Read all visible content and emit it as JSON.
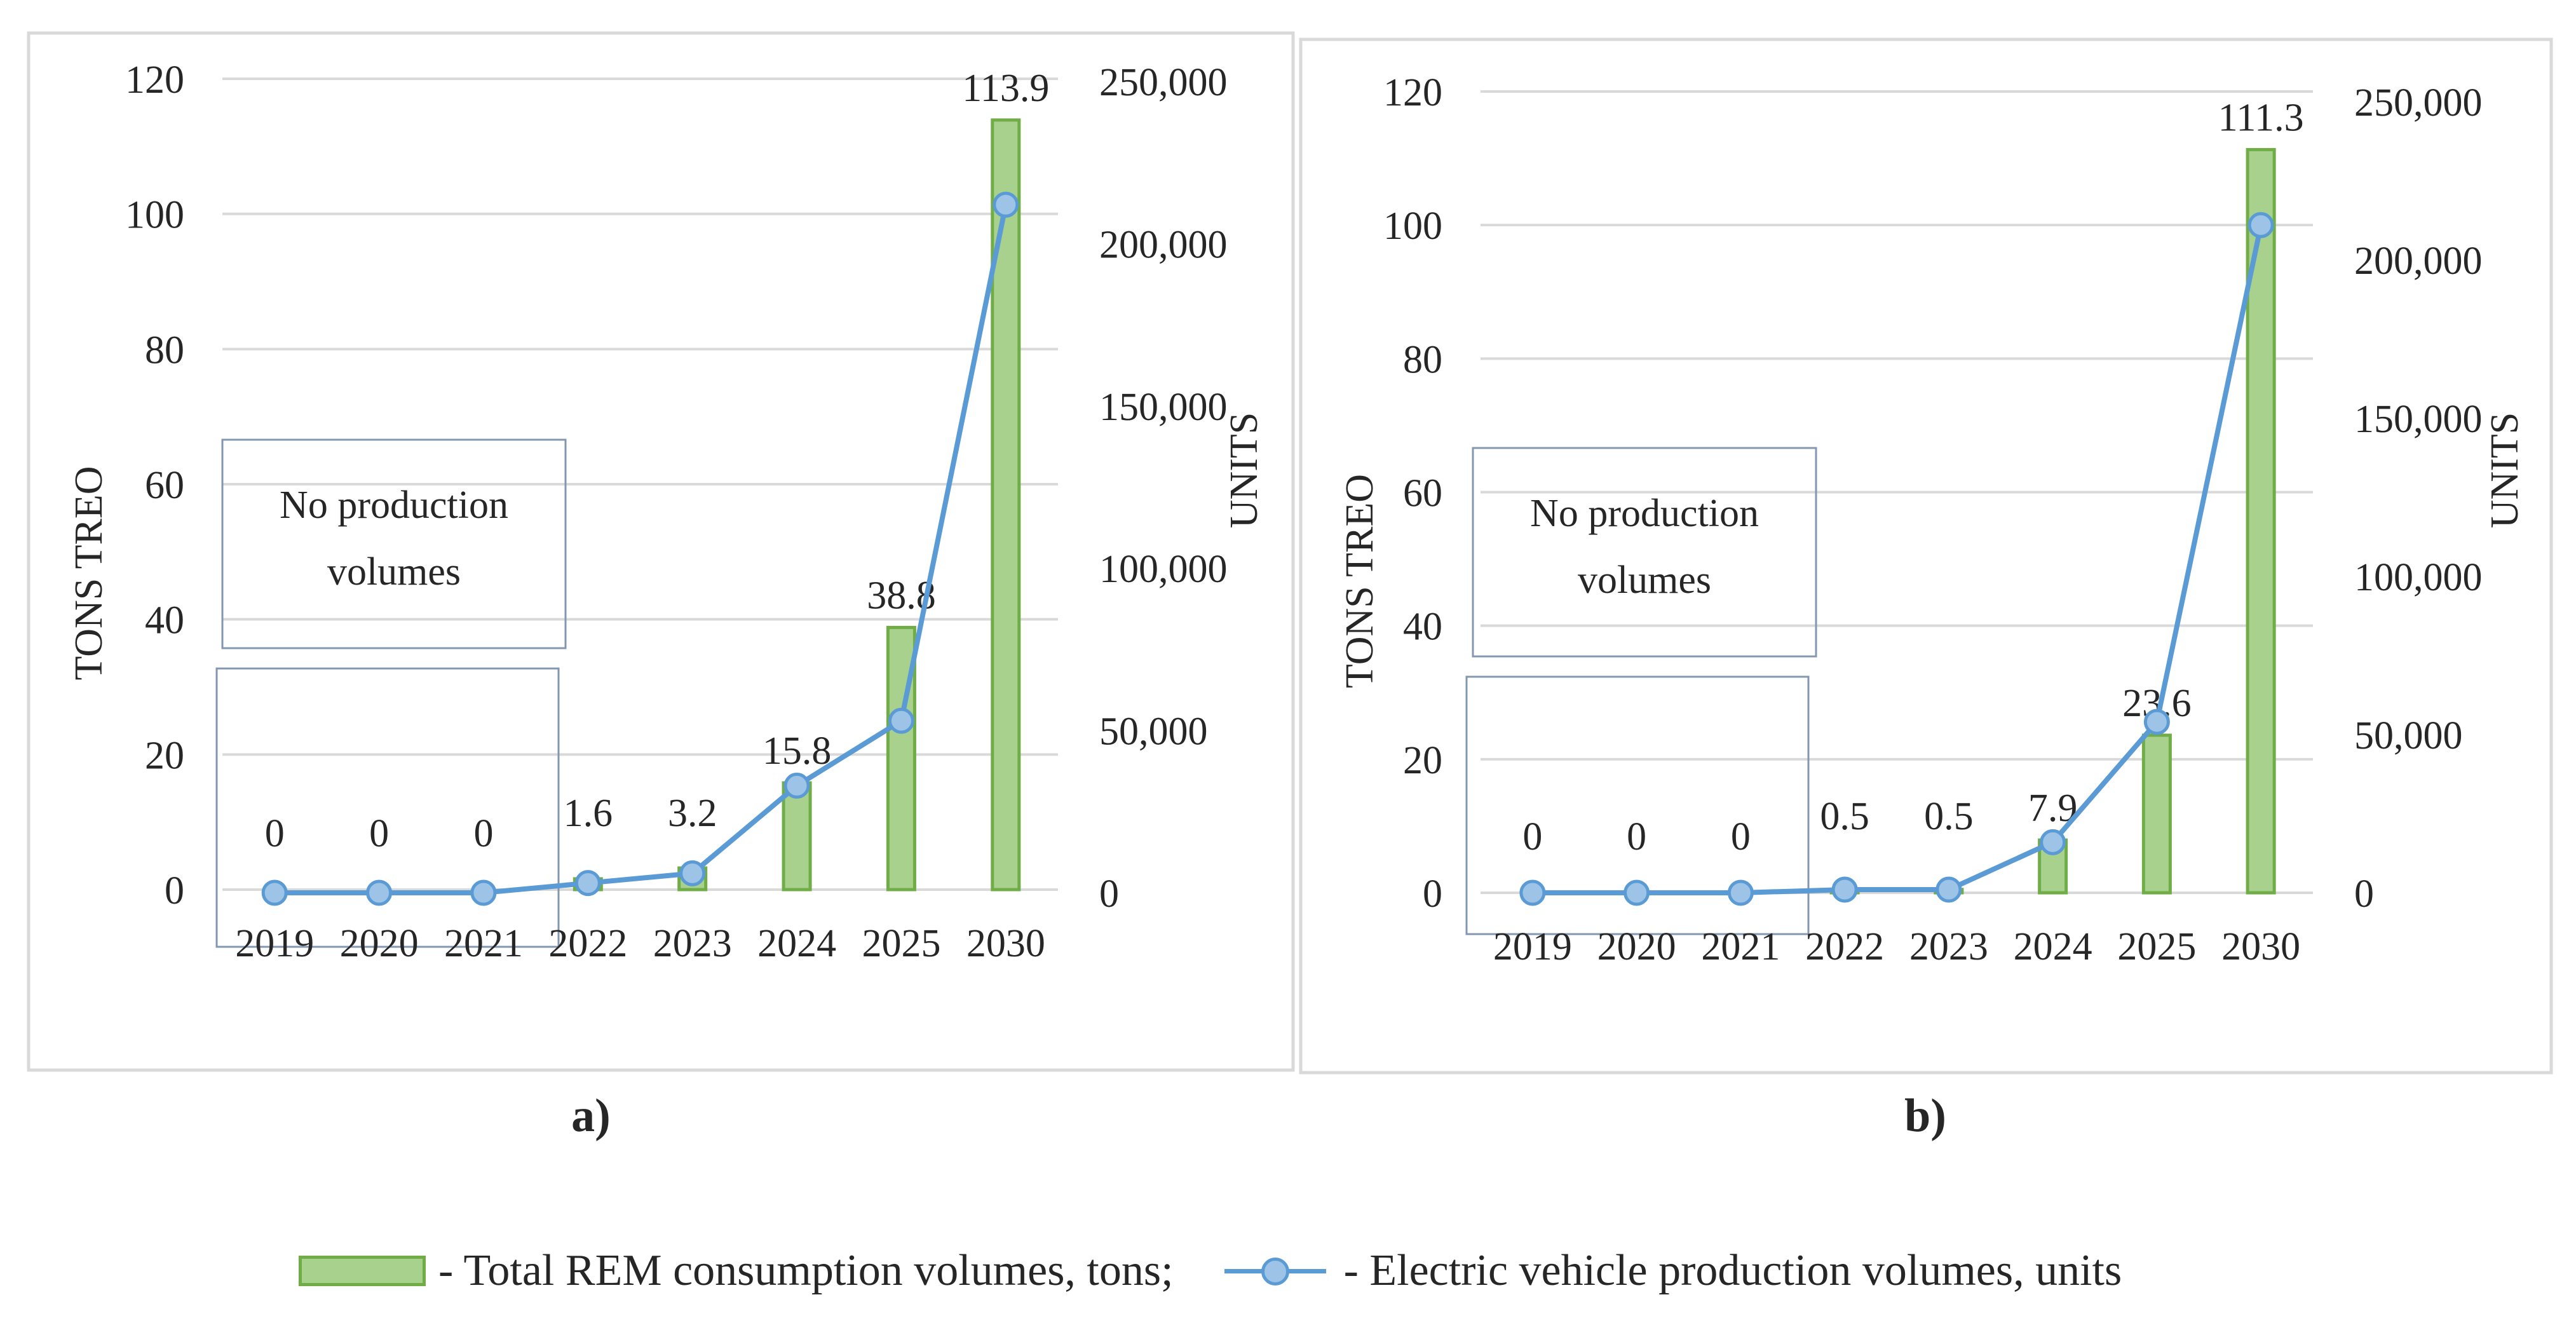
{
  "chart_data": [
    {
      "type": "bar",
      "panel_label": "a)",
      "categories": [
        "2019",
        "2020",
        "2021",
        "2022",
        "2023",
        "2024",
        "2025",
        "2030"
      ],
      "series": [
        {
          "name": "Total REM consumption volumes, tons",
          "axis": "left",
          "kind": "bar",
          "values": [
            0,
            0,
            0,
            1.6,
            3.2,
            15.8,
            38.8,
            113.9
          ],
          "data_labels": [
            "0",
            "0",
            "0",
            "1.6",
            "3.2",
            "15.8",
            "38.8",
            "113.9"
          ]
        },
        {
          "name": "Electric vehicle production volumes, units",
          "axis": "right",
          "kind": "line",
          "values": [
            0,
            0,
            0,
            3000,
            6000,
            33000,
            53000,
            212000
          ]
        }
      ],
      "ylabel": "TONS TREO",
      "y2label": "UNITS",
      "ylim": [
        0,
        120
      ],
      "y2lim": [
        0,
        250000
      ],
      "yticks": [
        "0",
        "20",
        "40",
        "60",
        "80",
        "100",
        "120"
      ],
      "y2ticks": [
        "0",
        "50,000",
        "100,000",
        "150,000",
        "200,000",
        "250,000"
      ],
      "annotation": [
        "No production",
        "volumes"
      ],
      "grid": true
    },
    {
      "type": "bar",
      "panel_label": "b)",
      "categories": [
        "2019",
        "2020",
        "2021",
        "2022",
        "2023",
        "2024",
        "2025",
        "2030"
      ],
      "series": [
        {
          "name": "Total REM consumption volumes, tons",
          "axis": "left",
          "kind": "bar",
          "values": [
            0,
            0,
            0,
            0.5,
            0.5,
            7.9,
            23.6,
            111.3
          ],
          "data_labels": [
            "0",
            "0",
            "0",
            "0.5",
            "0.5",
            "7.9",
            "23.6",
            "111.3"
          ]
        },
        {
          "name": "Electric vehicle production volumes, units",
          "axis": "right",
          "kind": "line",
          "values": [
            0,
            0,
            0,
            1000,
            1000,
            16000,
            54000,
            211000
          ]
        }
      ],
      "ylabel": "TONS TREO",
      "y2label": "UNITS",
      "ylim": [
        0,
        120
      ],
      "y2lim": [
        0,
        250000
      ],
      "yticks": [
        "0",
        "20",
        "40",
        "60",
        "80",
        "100",
        "120"
      ],
      "y2ticks": [
        "0",
        "50,000",
        "100,000",
        "150,000",
        "200,000",
        "250,000"
      ],
      "annotation": [
        "No production",
        "volumes"
      ],
      "grid": true
    }
  ],
  "legend": {
    "bar_label": "- Total REM consumption volumes, tons;",
    "line_label": "- Electric vehicle production volumes, units"
  },
  "colors": {
    "bar_fill": "#a9d18e",
    "bar_stroke": "#70ad47",
    "line": "#5b9bd5",
    "marker_fill": "#9dc3e6",
    "grid": "#d9d9d9",
    "frame": "#d9d9d9",
    "annotation_box": "#8497b0"
  }
}
